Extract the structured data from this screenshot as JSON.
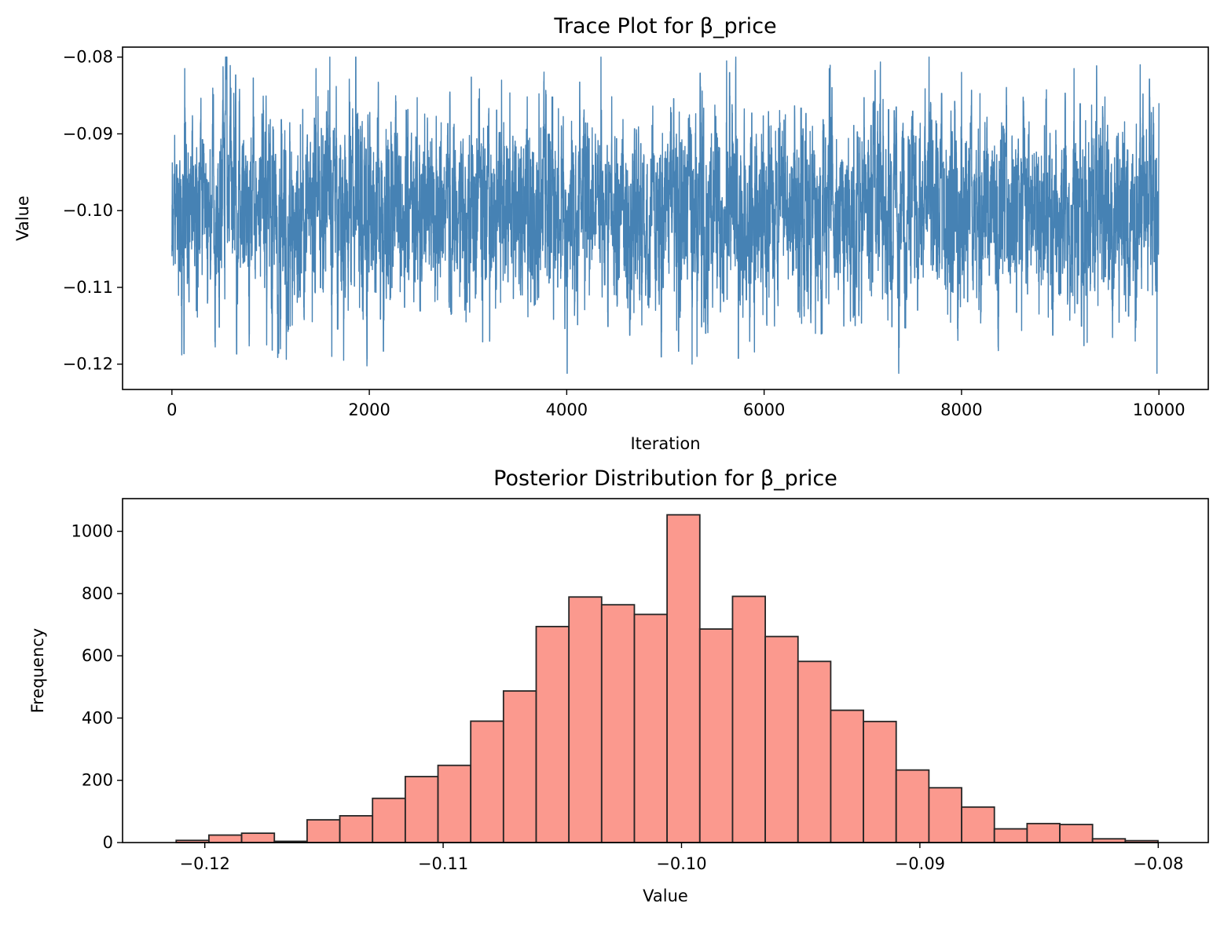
{
  "chart_data": [
    {
      "type": "line",
      "title": "Trace Plot for β_price",
      "xlabel": "Iteration",
      "ylabel": "Value",
      "xlim": [
        -500,
        10500
      ],
      "ylim": [
        -0.1233,
        -0.0787
      ],
      "xticks": [
        0,
        2000,
        4000,
        6000,
        8000,
        10000
      ],
      "xtick_labels": [
        "0",
        "2000",
        "4000",
        "6000",
        "8000",
        "10000"
      ],
      "yticks": [
        -0.12,
        -0.11,
        -0.1,
        -0.09,
        -0.08
      ],
      "ytick_labels": [
        "−0.12",
        "−0.11",
        "−0.10",
        "−0.09",
        "−0.08"
      ],
      "grid": false,
      "color": "#4682b4",
      "series": [
        {
          "iterations": [
            0,
            10000
          ],
          "summary": {
            "mean": -0.1,
            "min": -0.1212,
            "max": -0.08
          },
          "anchors": [
            [
              0,
              -0.1045
            ],
            [
              20,
              -0.0955
            ],
            [
              60,
              -0.103
            ],
            [
              80,
              -0.0935
            ],
            [
              100,
              -0.1188
            ],
            [
              130,
              -0.0815
            ],
            [
              200,
              -0.105
            ],
            [
              400,
              -0.098
            ],
            [
              960,
              -0.1175
            ],
            [
              1100,
              -0.118
            ],
            [
              1460,
              -0.0815
            ],
            [
              1600,
              -0.08
            ],
            [
              1620,
              -0.119
            ],
            [
              1740,
              -0.1195
            ],
            [
              2500,
              -0.1
            ],
            [
              2980,
              -0.1145
            ],
            [
              3340,
              -0.083
            ],
            [
              4000,
              -0.1
            ],
            [
              4900,
              -0.113
            ],
            [
              5270,
              -0.12
            ],
            [
              5320,
              -0.119
            ],
            [
              5620,
              -0.0805
            ],
            [
              6000,
              -0.1
            ],
            [
              6520,
              -0.116
            ],
            [
              6660,
              -0.0815
            ],
            [
              7000,
              -0.1
            ],
            [
              7860,
              -0.1135
            ],
            [
              8000,
              -0.082
            ],
            [
              8400,
              -0.105
            ],
            [
              9140,
              -0.0815
            ],
            [
              9760,
              -0.117
            ],
            [
              9810,
              -0.081
            ],
            [
              9980,
              -0.1212
            ],
            [
              10000,
              -0.086
            ]
          ]
        }
      ]
    },
    {
      "type": "bar",
      "title": "Posterior Distribution for β_price",
      "xlabel": "Value",
      "ylabel": "Frequency",
      "xlim": [
        -0.12345,
        -0.0779
      ],
      "ylim": [
        0,
        1105
      ],
      "xticks": [
        -0.12,
        -0.11,
        -0.1,
        -0.09,
        -0.08
      ],
      "xtick_labels": [
        "−0.12",
        "−0.11",
        "−0.10",
        "−0.09",
        "−0.08"
      ],
      "yticks": [
        0,
        200,
        400,
        600,
        800,
        1000
      ],
      "ytick_labels": [
        "0",
        "200",
        "400",
        "600",
        "800",
        "1000"
      ],
      "grid": false,
      "fill_color": "#fa8072",
      "edge_color": "#262626",
      "bin_start": -0.1212,
      "bin_width": 0.001373,
      "values": [
        7,
        24,
        30,
        4,
        73,
        86,
        142,
        212,
        248,
        390,
        487,
        694,
        789,
        764,
        733,
        1053,
        686,
        791,
        662,
        582,
        425,
        389,
        233,
        176,
        114,
        44,
        61,
        58,
        12,
        6
      ]
    }
  ]
}
